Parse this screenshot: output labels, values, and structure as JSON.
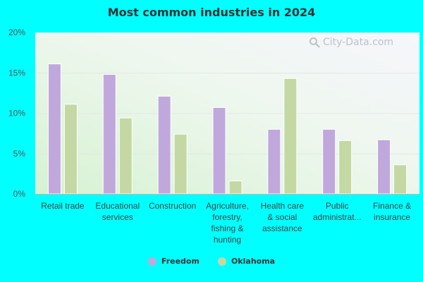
{
  "chart_data": {
    "type": "bar",
    "title": "Most common industries in 2024",
    "categories": [
      [
        "Retail trade"
      ],
      [
        "Educational",
        "services"
      ],
      [
        "Construction"
      ],
      [
        "Agriculture,",
        "forestry,",
        "fishing &",
        "hunting"
      ],
      [
        "Health care",
        "& social",
        "assistance"
      ],
      [
        "Public",
        "administrat..."
      ],
      [
        "Finance &",
        "insurance"
      ]
    ],
    "series": [
      {
        "name": "Freedom",
        "color": "#c0a8dc",
        "values": [
          16.1,
          14.8,
          12.1,
          10.7,
          8.0,
          8.0,
          6.7
        ]
      },
      {
        "name": "Oklahoma",
        "color": "#c4d8a4",
        "values": [
          11.1,
          9.4,
          7.4,
          1.6,
          14.3,
          6.6,
          3.6
        ]
      }
    ],
    "ylim": [
      0,
      20
    ],
    "yticks": [
      0,
      5,
      10,
      15,
      20
    ],
    "ytick_labels": [
      "0%",
      "5%",
      "10%",
      "15%",
      "20%"
    ],
    "xlabel": "",
    "ylabel": "",
    "grid": true,
    "legend_position": "bottom-center"
  },
  "watermark": {
    "text": "City-Data.com",
    "icon": "magnifier-icon"
  }
}
